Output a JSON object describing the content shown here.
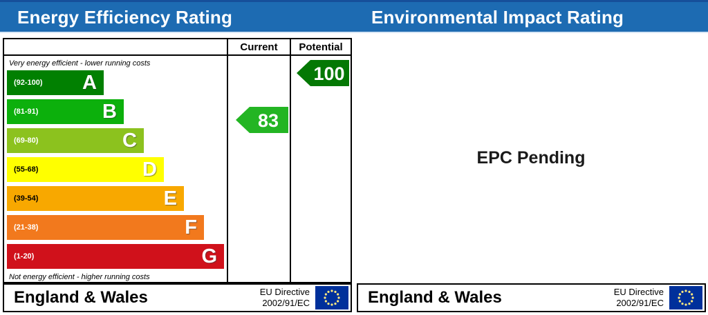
{
  "header": {
    "left_title": "Energy Efficiency Rating",
    "right_title": "Environmental Impact Rating",
    "bar_color": "#1d6bb2"
  },
  "left_panel": {
    "columns": {
      "current": "Current",
      "potential": "Potential"
    },
    "top_note": "Very energy efficient - lower running costs",
    "bottom_note": "Not energy efficient - higher running costs",
    "bands": [
      {
        "letter": "A",
        "range": "(92-100)",
        "color": "#018001",
        "range_text_color": "#ffffff"
      },
      {
        "letter": "B",
        "range": "(81-91)",
        "color": "#0cb00c",
        "range_text_color": "#ffffff"
      },
      {
        "letter": "C",
        "range": "(69-80)",
        "color": "#8cc21e",
        "range_text_color": "#ffffff"
      },
      {
        "letter": "D",
        "range": "(55-68)",
        "color": "#ffff00",
        "range_text_color": "#000000"
      },
      {
        "letter": "E",
        "range": "(39-54)",
        "color": "#f8a800",
        "range_text_color": "#000000"
      },
      {
        "letter": "F",
        "range": "(21-38)",
        "color": "#f2791d",
        "range_text_color": "#ffffff"
      },
      {
        "letter": "G",
        "range": "(1-20)",
        "color": "#d0111b",
        "range_text_color": "#ffffff"
      }
    ],
    "current": {
      "value": "83",
      "arrow_color": "#23b523"
    },
    "potential": {
      "value": "100",
      "arrow_color": "#047804"
    }
  },
  "right_panel": {
    "status_text": "EPC Pending"
  },
  "footer_left": {
    "region": "England & Wales",
    "directive_line1": "EU Directive",
    "directive_line2": "2002/91/EC",
    "flag_color": "#00309b",
    "star_color": "#ffe97f"
  },
  "footer_right": {
    "region": "England & Wales",
    "directive_line1": "EU Directive",
    "directive_line2": "2002/91/EC",
    "flag_color": "#00309b",
    "star_color": "#ffe97f"
  },
  "chart_data": {
    "type": "bar",
    "title": "Energy Efficiency Rating",
    "subtitle_right_chart": "Environmental Impact Rating",
    "categories": [
      "A",
      "B",
      "C",
      "D",
      "E",
      "F",
      "G"
    ],
    "band_ranges": [
      "92-100",
      "81-91",
      "69-80",
      "55-68",
      "39-54",
      "21-38",
      "1-20"
    ],
    "band_colors": [
      "#018001",
      "#0cb00c",
      "#8cc21e",
      "#ffff00",
      "#f8a800",
      "#f2791d",
      "#d0111b"
    ],
    "columns": [
      "Current",
      "Potential"
    ],
    "current_value": 83,
    "current_band": "B",
    "potential_value": 100,
    "potential_band": "A",
    "top_axis_note": "Very energy efficient - lower running costs",
    "bottom_axis_note": "Not energy efficient - higher running costs",
    "right_chart_status": "EPC Pending",
    "footer_region": "England & Wales",
    "footer_directive": "EU Directive 2002/91/EC"
  }
}
